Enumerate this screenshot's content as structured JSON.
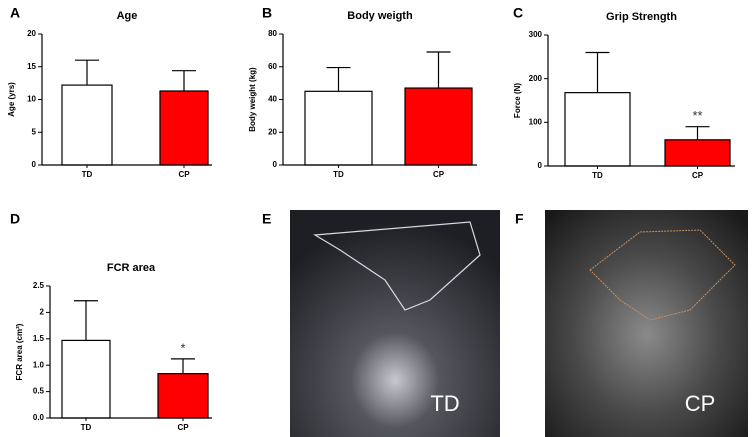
{
  "chart_data": [
    {
      "type": "bar",
      "panel": "A",
      "title": "Age",
      "ylabel": "Age (yrs)",
      "categories": [
        "TD",
        "CP"
      ],
      "values": [
        12.2,
        11.3
      ],
      "errors": [
        3.8,
        3.1
      ],
      "colors": [
        "#ffffff",
        "#ff0000"
      ],
      "ylim": [
        0,
        20
      ],
      "yticks": [
        0,
        5,
        10,
        15,
        20
      ]
    },
    {
      "type": "bar",
      "panel": "B",
      "title": "Body weigth",
      "ylabel": "Body weight (kg)",
      "categories": [
        "TD",
        "CP"
      ],
      "values": [
        45,
        47
      ],
      "errors": [
        14.5,
        22
      ],
      "colors": [
        "#ffffff",
        "#ff0000"
      ],
      "ylim": [
        0,
        80
      ],
      "yticks": [
        0,
        20,
        40,
        60,
        80
      ]
    },
    {
      "type": "bar",
      "panel": "C",
      "title": "Grip Strength",
      "ylabel": "Force (N)",
      "categories": [
        "TD",
        "CP"
      ],
      "values": [
        168,
        60
      ],
      "errors": [
        92,
        30
      ],
      "colors": [
        "#ffffff",
        "#ff0000"
      ],
      "ylim": [
        0,
        300
      ],
      "yticks": [
        0,
        100,
        200,
        300
      ],
      "annotation": "**"
    },
    {
      "type": "bar",
      "panel": "D",
      "title": "FCR area",
      "ylabel": "FCR area (cm²)",
      "categories": [
        "TD",
        "CP"
      ],
      "values": [
        1.47,
        0.84
      ],
      "errors": [
        0.75,
        0.28
      ],
      "colors": [
        "#ffffff",
        "#ff0000"
      ],
      "ylim": [
        0,
        2.5
      ],
      "yticks": [
        {
          "value": 0,
          "label": "0.0"
        },
        0.5,
        {
          "value": 1,
          "label": "1.0"
        },
        1.5,
        2,
        2.5
      ],
      "annotation": "*"
    }
  ],
  "images": [
    {
      "panel": "E",
      "label": "TD"
    },
    {
      "panel": "F",
      "label": "CP"
    }
  ]
}
